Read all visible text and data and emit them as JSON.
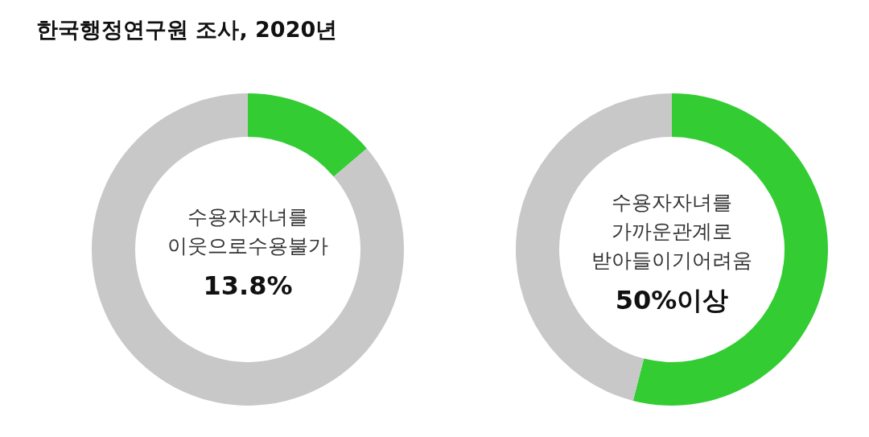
{
  "chart_data": [
    {
      "type": "donut",
      "title": "한국행정연구원 조사, 2020년",
      "categories": [
        null,
        null
      ],
      "values": [
        13.8,
        86.2
      ],
      "colors": [
        "#33cc33",
        "#c8c8c8"
      ],
      "annotations": [
        "수용자자녀를\n이웃으로수용불가",
        "13.8%"
      ]
    },
    {
      "type": "donut",
      "categories": [
        null,
        null
      ],
      "values": [
        54,
        46
      ],
      "colors": [
        "#33cc33",
        "#c8c8c8"
      ],
      "annotations": [
        "수용자자녀를\n가까운관계로\n받아들이기어려움",
        "50%이상"
      ]
    }
  ]
}
